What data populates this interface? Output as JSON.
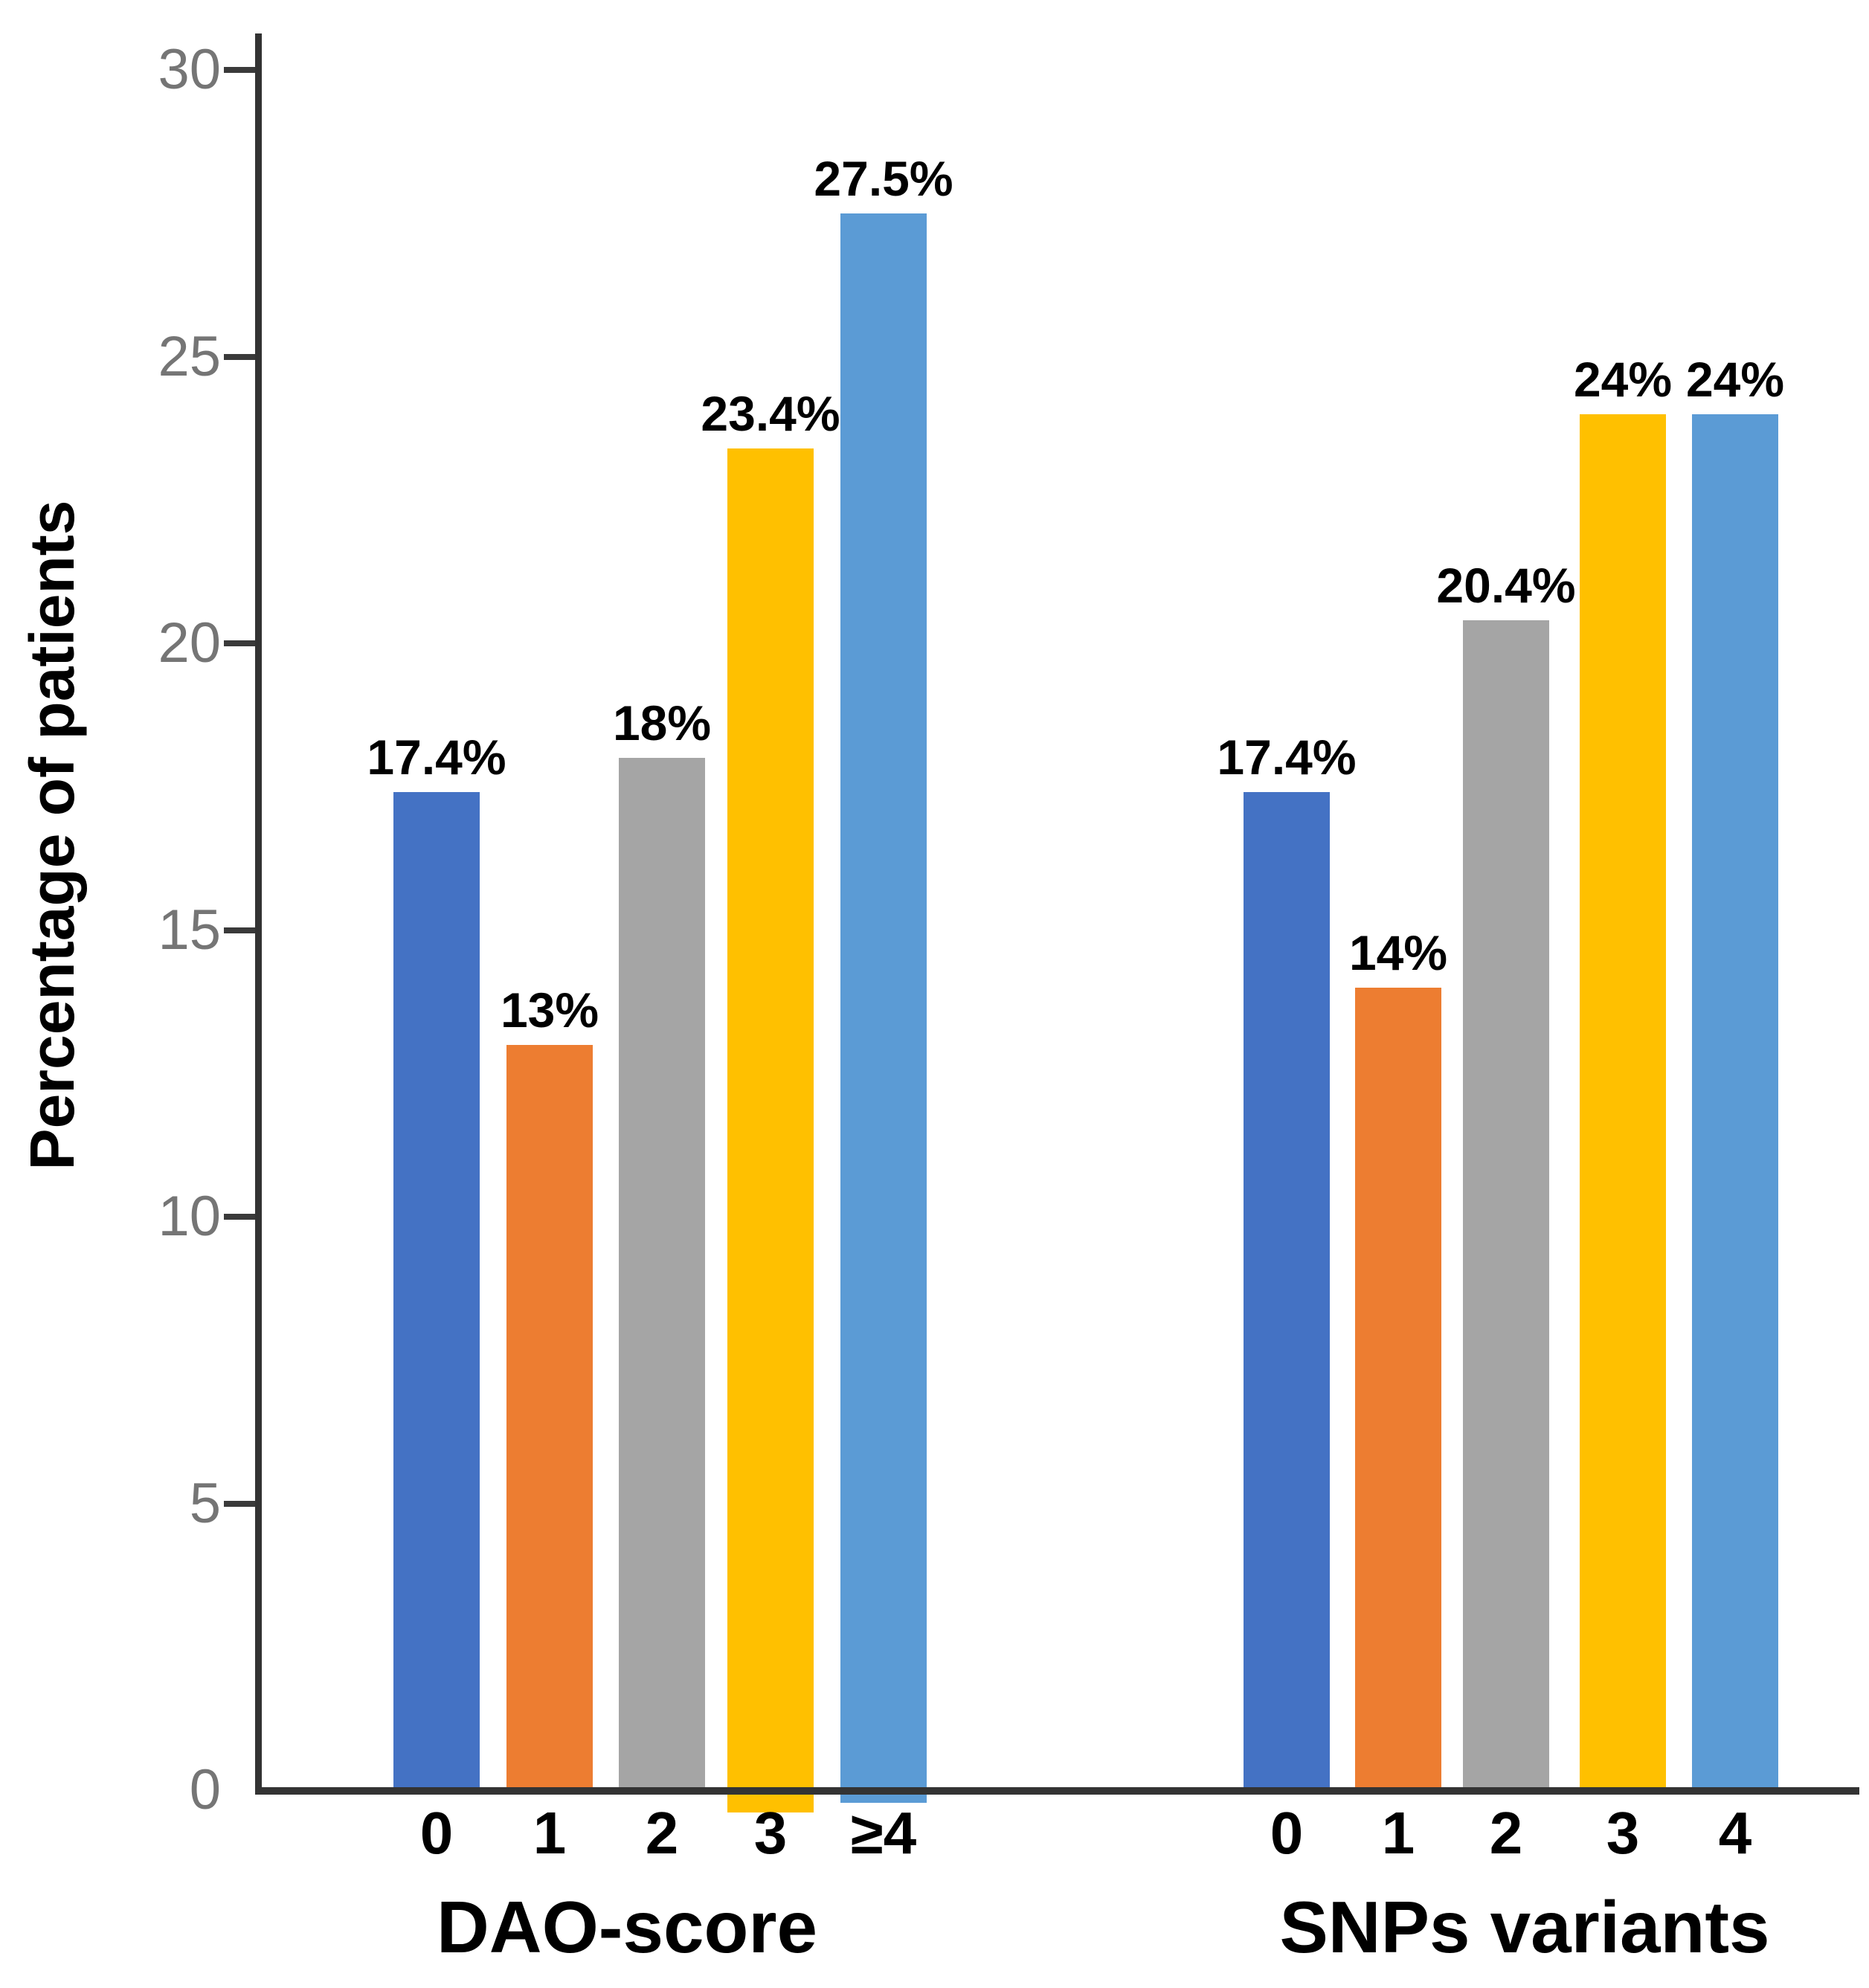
{
  "chart_data": {
    "type": "bar",
    "title": "",
    "ylabel": "Percentage of patients",
    "xlabel": "",
    "ylim": [
      0,
      30
    ],
    "yticks": [
      0,
      5,
      10,
      15,
      20,
      25,
      30
    ],
    "grid": false,
    "legend": false,
    "bar_colors": [
      "#4472C4",
      "#ED7D31",
      "#A5A5A5",
      "#FFC000",
      "#5B9BD5"
    ],
    "groups": [
      {
        "label": "DAO-score",
        "categories": [
          "0",
          "1",
          "2",
          "3",
          "≥4"
        ],
        "values": [
          17.4,
          13,
          18,
          23.4,
          27.5
        ],
        "value_labels": [
          "17.4%",
          "13%",
          "18%",
          "23.4%",
          "27.5%"
        ]
      },
      {
        "label": "SNPs variants",
        "categories": [
          "0",
          "1",
          "2",
          "3",
          "4"
        ],
        "values": [
          17.4,
          14,
          20.4,
          24,
          24
        ],
        "value_labels": [
          "17.4%",
          "14%",
          "20.4%",
          "24%",
          "24%"
        ]
      }
    ],
    "axis_color": "#333333",
    "tick_label_color": "#757575",
    "value_label_color": "#000000"
  }
}
